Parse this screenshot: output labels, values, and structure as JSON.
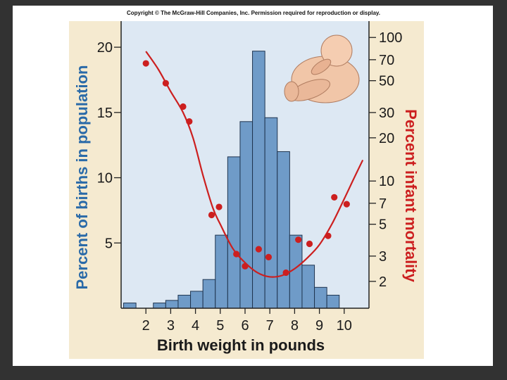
{
  "copyright": "Copyright © The McGraw-Hill Companies, Inc. Permission required for reproduction or display.",
  "colors": {
    "panel": "#f5ead0",
    "plot_bg": "#dde8f3",
    "bars": "#6f9bc8",
    "bar_stroke": "#1f3550",
    "mortality": "#cc1f1f",
    "left_label": "#2a6aa8",
    "right_label": "#cc1f1f"
  },
  "chart_data": {
    "type": "bar",
    "title": "",
    "xlabel": "Birth weight in pounds",
    "ylabel_left": "Percent of births in population",
    "ylabel_right": "Percent infant mortality",
    "xlim": [
      1,
      11
    ],
    "ylim_left": [
      0,
      22
    ],
    "x_ticks": [
      2,
      3,
      4,
      5,
      6,
      7,
      8,
      9,
      10
    ],
    "y_ticks_left": [
      5,
      10,
      15,
      20
    ],
    "y_ticks_right": [
      2,
      3,
      5,
      7,
      10,
      20,
      30,
      50,
      70,
      100
    ],
    "right_axis_scale": "log",
    "ylim_right": [
      1.3,
      130
    ],
    "grid": false,
    "histogram": [
      {
        "x0": 1.1,
        "x1": 1.6,
        "value": 0.4
      },
      {
        "x0": 2.3,
        "x1": 2.8,
        "value": 0.4
      },
      {
        "x0": 2.8,
        "x1": 3.3,
        "value": 0.6
      },
      {
        "x0": 3.3,
        "x1": 3.8,
        "value": 1.0
      },
      {
        "x0": 3.8,
        "x1": 4.3,
        "value": 1.3
      },
      {
        "x0": 4.3,
        "x1": 4.8,
        "value": 2.2
      },
      {
        "x0": 4.8,
        "x1": 5.3,
        "value": 5.6
      },
      {
        "x0": 5.3,
        "x1": 5.8,
        "value": 11.6
      },
      {
        "x0": 5.8,
        "x1": 6.3,
        "value": 14.3
      },
      {
        "x0": 6.3,
        "x1": 6.8,
        "value": 19.7
      },
      {
        "x0": 6.8,
        "x1": 7.3,
        "value": 14.6
      },
      {
        "x0": 7.3,
        "x1": 7.8,
        "value": 12.0
      },
      {
        "x0": 7.8,
        "x1": 8.3,
        "value": 5.6
      },
      {
        "x0": 8.3,
        "x1": 8.8,
        "value": 3.3
      },
      {
        "x0": 8.8,
        "x1": 9.3,
        "value": 1.6
      },
      {
        "x0": 9.3,
        "x1": 9.8,
        "value": 1.0
      }
    ],
    "mortality_points": [
      {
        "x": 2.0,
        "y": 66
      },
      {
        "x": 2.8,
        "y": 48
      },
      {
        "x": 3.5,
        "y": 33
      },
      {
        "x": 3.75,
        "y": 26
      },
      {
        "x": 4.65,
        "y": 5.8
      },
      {
        "x": 4.95,
        "y": 6.6
      },
      {
        "x": 5.65,
        "y": 3.1
      },
      {
        "x": 6.0,
        "y": 2.55
      },
      {
        "x": 6.55,
        "y": 3.35
      },
      {
        "x": 6.95,
        "y": 2.95
      },
      {
        "x": 7.65,
        "y": 2.3
      },
      {
        "x": 8.15,
        "y": 3.9
      },
      {
        "x": 8.6,
        "y": 3.65
      },
      {
        "x": 9.35,
        "y": 4.15
      },
      {
        "x": 9.6,
        "y": 7.7
      },
      {
        "x": 10.1,
        "y": 6.9
      }
    ],
    "mortality_curve": [
      {
        "x": 2.0,
        "y": 80
      },
      {
        "x": 2.5,
        "y": 60
      },
      {
        "x": 3.0,
        "y": 42
      },
      {
        "x": 3.5,
        "y": 30
      },
      {
        "x": 3.9,
        "y": 20
      },
      {
        "x": 4.3,
        "y": 11
      },
      {
        "x": 4.7,
        "y": 6.5
      },
      {
        "x": 5.0,
        "y": 5.0
      },
      {
        "x": 5.5,
        "y": 3.4
      },
      {
        "x": 6.0,
        "y": 2.7
      },
      {
        "x": 6.5,
        "y": 2.3
      },
      {
        "x": 7.0,
        "y": 2.15
      },
      {
        "x": 7.5,
        "y": 2.2
      },
      {
        "x": 8.0,
        "y": 2.45
      },
      {
        "x": 8.5,
        "y": 2.9
      },
      {
        "x": 9.0,
        "y": 3.6
      },
      {
        "x": 9.5,
        "y": 5.0
      },
      {
        "x": 10.0,
        "y": 7.5
      },
      {
        "x": 10.4,
        "y": 10.5
      },
      {
        "x": 10.75,
        "y": 14
      }
    ]
  }
}
